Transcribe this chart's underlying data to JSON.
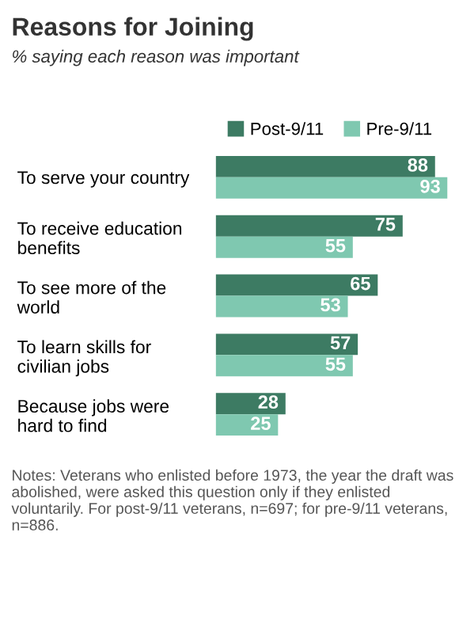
{
  "chart_data": {
    "type": "bar",
    "orientation": "horizontal",
    "title": "Reasons for Joining",
    "subtitle": "% saying each reason was important",
    "categories": [
      "To serve your country",
      "To receive education\nbenefits",
      "To see more of the\nworld",
      "To learn skills for\ncivilian jobs",
      "Because jobs were\nhard to find"
    ],
    "series": [
      {
        "name": "Post-9/11",
        "color": "#3d7b63",
        "values": [
          88,
          75,
          65,
          57,
          28
        ]
      },
      {
        "name": "Pre-9/11",
        "color": "#7fc8b0",
        "values": [
          93,
          55,
          53,
          55,
          25
        ]
      }
    ],
    "data_labels": true,
    "legend": "top",
    "grid": false,
    "annotations": [
      "Notes: Veterans who enlisted before 1973, the year the draft was abolished, were asked this question only if they enlisted voluntarily. For post-9/11 veterans, n=697; for pre-9/11 veterans, n=886."
    ]
  }
}
